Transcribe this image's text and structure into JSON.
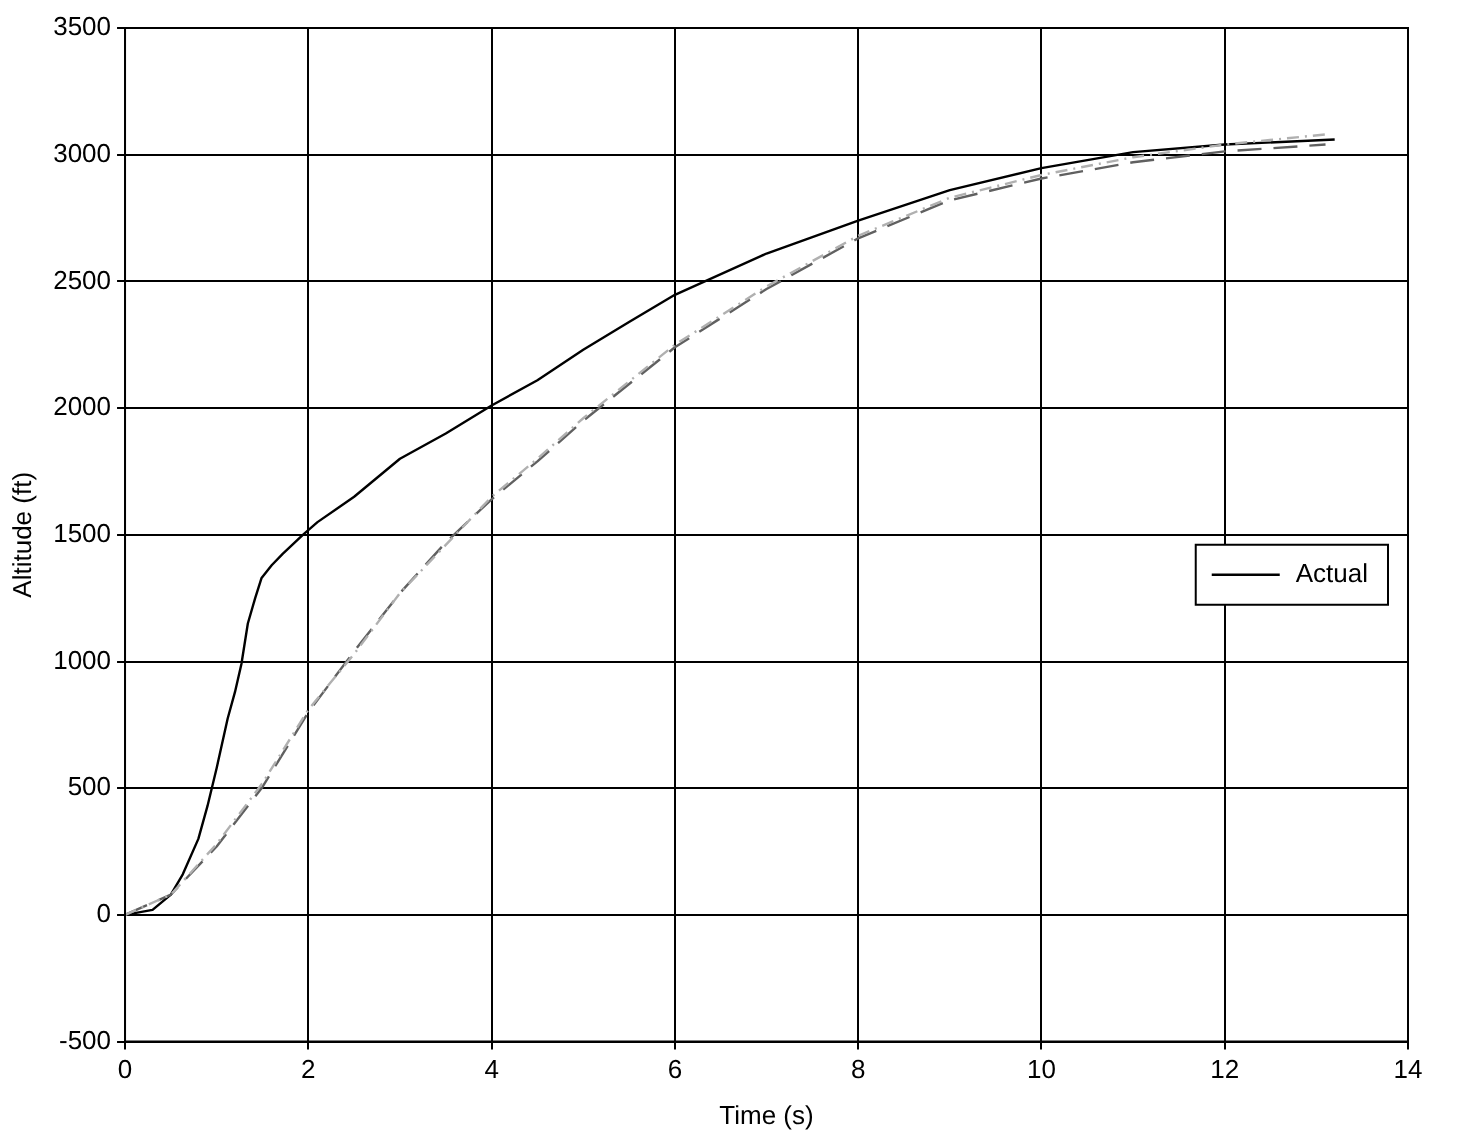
{
  "chart_data": {
    "type": "line",
    "xlabel": "Time (s)",
    "ylabel": "Altitude (ft)",
    "xlim": [
      0,
      14
    ],
    "xticks": [
      0,
      2,
      4,
      6,
      8,
      10,
      12,
      14
    ],
    "ylim": [
      -500,
      3500
    ],
    "yticks": [
      -500,
      0,
      500,
      1000,
      1500,
      2000,
      2500,
      3000,
      3500
    ],
    "grid": true,
    "legend": "right",
    "marker": "none",
    "series": [
      {
        "color": "#b0b0b0",
        "line_style": "dotted",
        "x": [
          0,
          0.5,
          1,
          1.5,
          2,
          2.5,
          3,
          3.5,
          4,
          4.5,
          5,
          6,
          7,
          8,
          9,
          10,
          11,
          12,
          13.1
        ],
        "values": [
          0,
          80,
          280,
          520,
          810,
          1030,
          1270,
          1460,
          1650,
          1800,
          1960,
          2250,
          2480,
          2680,
          2830,
          2920,
          2990,
          3040,
          3080
        ]
      },
      {
        "color": "#606060",
        "line_style": "dashed",
        "x": [
          0,
          0.5,
          1,
          1.5,
          2,
          2.5,
          3,
          3.5,
          4,
          4.5,
          5,
          6,
          7,
          8,
          9,
          10,
          11,
          12,
          13.1
        ],
        "values": [
          0,
          80,
          270,
          505,
          800,
          1040,
          1270,
          1470,
          1640,
          1790,
          1950,
          2240,
          2470,
          2670,
          2820,
          2906,
          2970,
          3013,
          3040
        ]
      },
      {
        "name": "Actual",
        "color": "#000000",
        "line_style": "solid",
        "x": [
          0,
          0.3,
          0.5,
          0.63,
          0.8,
          0.9,
          1,
          1.12,
          1.2,
          1.27,
          1.34,
          1.42,
          1.49,
          1.6,
          1.72,
          1.94,
          2.1,
          2.5,
          3,
          3.5,
          4,
          4.5,
          5,
          5.5,
          6,
          7,
          8,
          9,
          10,
          11,
          12,
          13.2
        ],
        "values": [
          0,
          20,
          80,
          160,
          300,
          430,
          580,
          775,
          880,
          990,
          1150,
          1250,
          1330,
          1380,
          1425,
          1500,
          1550,
          1650,
          1800,
          1900,
          2010,
          2110,
          2230,
          2340,
          2447,
          2610,
          2740,
          2860,
          2947,
          3010,
          3040,
          3060
        ]
      }
    ]
  }
}
